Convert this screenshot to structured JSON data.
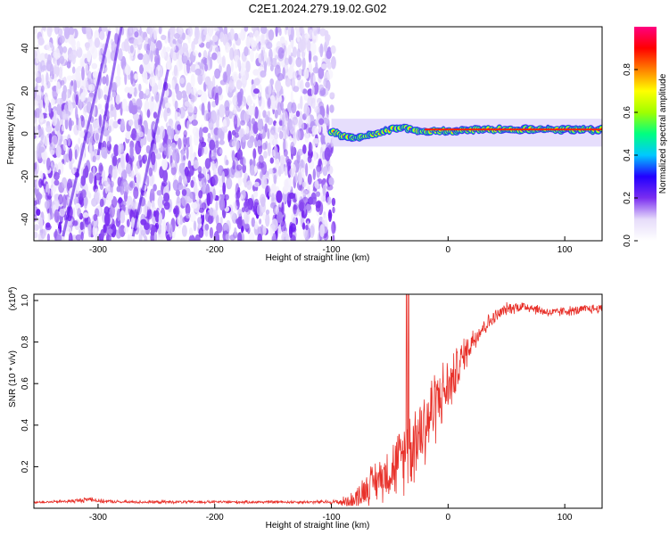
{
  "figure": {
    "title": "C2E1.2024.279.19.02.G02"
  },
  "chart_data": [
    {
      "type": "heatmap",
      "title": "",
      "xlabel": "Height of straight line (km)",
      "ylabel": "Frequency (Hz)",
      "xlim": [
        -355,
        132
      ],
      "ylim": [
        -50,
        50
      ],
      "x_ticks": [
        -300,
        -200,
        -100,
        0,
        100
      ],
      "x_tick_labels": [
        "-300",
        "-200",
        "-100",
        "0",
        "100"
      ],
      "y_ticks": [
        -40,
        -20,
        0,
        20,
        40
      ],
      "y_tick_labels": [
        "-40",
        "-20",
        "0",
        "20",
        "40"
      ],
      "colorbar": {
        "label": "Normalized spectral amplitude",
        "range": [
          0,
          1
        ],
        "ticks": [
          0.0,
          0.2,
          0.4,
          0.6,
          0.8
        ],
        "tick_labels": [
          "0.0",
          "0.2",
          "0.4",
          "0.6",
          "0.8"
        ],
        "colormap": [
          "#ffffff",
          "#e6dcfa",
          "#7a2ef0",
          "#2200ff",
          "#00c8ff",
          "#00ff80",
          "#a0ff00",
          "#ffff00",
          "#ff8000",
          "#ff0000",
          "#ff0080"
        ]
      },
      "regions": [
        {
          "name": "noise",
          "x_range": [
            -355,
            -98
          ],
          "f_range": [
            -50,
            50
          ],
          "amplitude": [
            0.0,
            0.25
          ]
        },
        {
          "name": "signal",
          "x_range": [
            -100,
            132
          ],
          "f_range": [
            -4,
            5
          ],
          "amplitude": [
            0.5,
            0.98
          ]
        }
      ],
      "signal_track": {
        "x": [
          -100,
          -90,
          -80,
          -70,
          -60,
          -50,
          -40,
          -30,
          -20,
          -10,
          0,
          10,
          20,
          40,
          60,
          80,
          100,
          132
        ],
        "f_center": [
          1,
          -1,
          -2,
          -1,
          0,
          2,
          3,
          2,
          1,
          1.5,
          1,
          1.5,
          2,
          2,
          2,
          2,
          2,
          2
        ]
      },
      "grid": false,
      "legend": "colorbar-right"
    },
    {
      "type": "line",
      "title": "",
      "xlabel": "Height of straight line (km)",
      "ylabel": "SNR (10 * v/v)",
      "y_multiplier": "(x10^4)",
      "xlim": [
        -355,
        132
      ],
      "ylim": [
        0,
        1.03
      ],
      "x_ticks": [
        -300,
        -200,
        -100,
        0,
        100
      ],
      "x_tick_labels": [
        "-300",
        "-200",
        "-100",
        "0",
        "100"
      ],
      "y_ticks": [
        0.2,
        0.4,
        0.6,
        0.8,
        1.0
      ],
      "y_tick_labels": [
        "0.2",
        "0.4",
        "0.6",
        "0.8",
        "1.0"
      ],
      "series": [
        {
          "color": "#e8312a",
          "x": [
            -355,
            -340,
            -320,
            -305,
            -300,
            -280,
            -250,
            -200,
            -150,
            -120,
            -100,
            -90,
            -80,
            -75,
            -70,
            -65,
            -60,
            -55,
            -50,
            -45,
            -40,
            -35,
            -30,
            -25,
            -20,
            -15,
            -10,
            -5,
            0,
            5,
            10,
            15,
            20,
            25,
            30,
            40,
            50,
            60,
            70,
            80,
            90,
            100,
            110,
            120,
            132
          ],
          "y": [
            0.03,
            0.03,
            0.035,
            0.045,
            0.035,
            0.03,
            0.03,
            0.03,
            0.03,
            0.03,
            0.03,
            0.03,
            0.04,
            0.07,
            0.1,
            0.12,
            0.14,
            0.16,
            0.18,
            0.2,
            0.24,
            0.27,
            0.32,
            0.36,
            0.4,
            0.45,
            0.52,
            0.55,
            0.58,
            0.63,
            0.7,
            0.75,
            0.8,
            0.84,
            0.87,
            0.92,
            0.96,
            0.97,
            0.97,
            0.95,
            0.94,
            0.95,
            0.95,
            0.96,
            0.96
          ],
          "noise_amplitude": [
            0.005,
            0.005,
            0.008,
            0.012,
            0.008,
            0.006,
            0.006,
            0.006,
            0.006,
            0.006,
            0.008,
            0.02,
            0.04,
            0.06,
            0.07,
            0.08,
            0.09,
            0.1,
            0.11,
            0.13,
            0.14,
            0.16,
            0.17,
            0.18,
            0.19,
            0.17,
            0.16,
            0.13,
            0.12,
            0.1,
            0.09,
            0.07,
            0.06,
            0.05,
            0.04,
            0.03,
            0.025,
            0.025,
            0.025,
            0.02,
            0.02,
            0.02,
            0.02,
            0.02,
            0.02
          ]
        }
      ],
      "grid": false,
      "legend": "none"
    }
  ]
}
